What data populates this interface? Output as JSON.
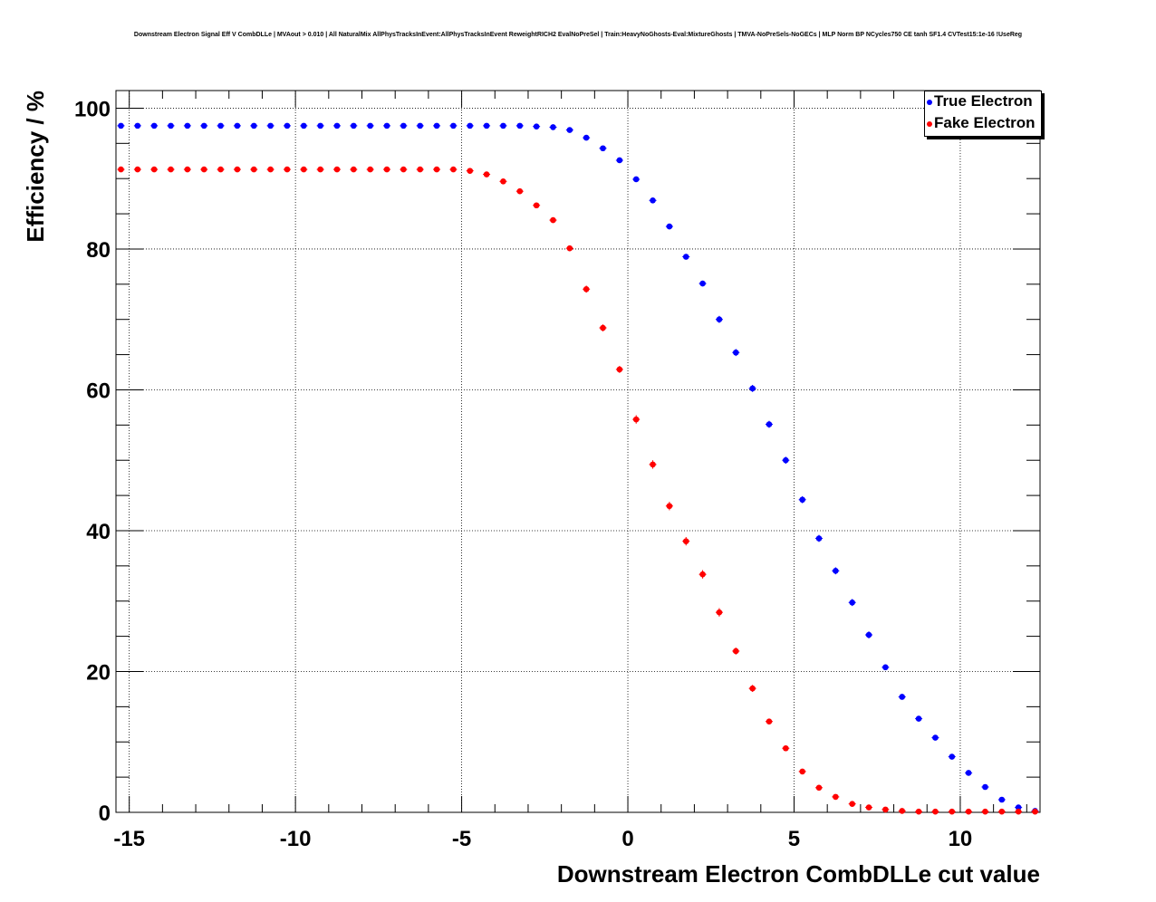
{
  "chart_data": {
    "type": "scatter",
    "title": "Downstream Electron Signal Eff V CombDLLe | MVAout > 0.010 | All NaturalMix AllPhysTracksInEvent:AllPhysTracksInEvent ReweightRICH2 EvalNoPreSel | Train:HeavyNoGhosts-Eval:MixtureGhosts | TMVA-NoPreSels-NoGECs | MLP Norm BP NCycles750 CE tanh SF1.4 CVTest15:1e-16 !UseReg",
    "xlabel": "Downstream Electron CombDLLe cut value",
    "ylabel": "Efficiency / %",
    "xlim": [
      -15.4,
      12.4
    ],
    "ylim": [
      0,
      102.5
    ],
    "xticks": [
      -15,
      -10,
      -5,
      0,
      5,
      10
    ],
    "xtick_labels": [
      "-15",
      "-10",
      "-5",
      "0",
      "5",
      "10"
    ],
    "yticks": [
      0,
      20,
      40,
      60,
      80,
      100
    ],
    "ytick_labels": [
      "0",
      "20",
      "40",
      "60",
      "80",
      "100"
    ],
    "grid": true,
    "legend_position": "top-right",
    "series": [
      {
        "name": "True Electron",
        "color": "#0000ff",
        "x": [
          -15.25,
          -14.75,
          -14.25,
          -13.75,
          -13.25,
          -12.75,
          -12.25,
          -11.75,
          -11.25,
          -10.75,
          -10.25,
          -9.75,
          -9.25,
          -8.75,
          -8.25,
          -7.75,
          -7.25,
          -6.75,
          -6.25,
          -5.75,
          -5.25,
          -4.75,
          -4.25,
          -3.75,
          -3.25,
          -2.75,
          -2.25,
          -1.75,
          -1.25,
          -0.75,
          -0.25,
          0.25,
          0.75,
          1.25,
          1.75,
          2.25,
          2.75,
          3.25,
          3.75,
          4.25,
          4.75,
          5.25,
          5.75,
          6.25,
          6.75,
          7.25,
          7.75,
          8.25,
          8.75,
          9.25,
          9.75,
          10.25,
          10.75,
          11.25,
          11.75,
          12.25
        ],
        "y": [
          97.5,
          97.5,
          97.5,
          97.5,
          97.5,
          97.5,
          97.5,
          97.5,
          97.5,
          97.5,
          97.5,
          97.5,
          97.5,
          97.5,
          97.5,
          97.5,
          97.5,
          97.5,
          97.5,
          97.5,
          97.5,
          97.5,
          97.5,
          97.5,
          97.5,
          97.4,
          97.3,
          96.9,
          95.8,
          94.3,
          92.6,
          89.9,
          86.9,
          83.2,
          78.9,
          75.1,
          70.0,
          65.3,
          60.2,
          55.1,
          50.0,
          44.4,
          38.9,
          34.3,
          29.8,
          25.2,
          20.6,
          16.4,
          13.3,
          10.6,
          7.9,
          5.6,
          3.6,
          1.8,
          0.7,
          0.2
        ],
        "error": [
          0.2,
          0.2,
          0.2,
          0.2,
          0.2,
          0.2,
          0.2,
          0.2,
          0.2,
          0.2,
          0.2,
          0.2,
          0.2,
          0.2,
          0.2,
          0.2,
          0.2,
          0.2,
          0.2,
          0.2,
          0.2,
          0.2,
          0.2,
          0.2,
          0.2,
          0.2,
          0.2,
          0.2,
          0.2,
          0.3,
          0.3,
          0.3,
          0.3,
          0.4,
          0.4,
          0.4,
          0.5,
          0.5,
          0.5,
          0.5,
          0.5,
          0.5,
          0.5,
          0.5,
          0.5,
          0.5,
          0.4,
          0.4,
          0.4,
          0.3,
          0.3,
          0.3,
          0.2,
          0.2,
          0.1,
          0.1
        ]
      },
      {
        "name": "Fake Electron",
        "color": "#ff0000",
        "x": [
          -15.25,
          -14.75,
          -14.25,
          -13.75,
          -13.25,
          -12.75,
          -12.25,
          -11.75,
          -11.25,
          -10.75,
          -10.25,
          -9.75,
          -9.25,
          -8.75,
          -8.25,
          -7.75,
          -7.25,
          -6.75,
          -6.25,
          -5.75,
          -5.25,
          -4.75,
          -4.25,
          -3.75,
          -3.25,
          -2.75,
          -2.25,
          -1.75,
          -1.25,
          -0.75,
          -0.25,
          0.25,
          0.75,
          1.25,
          1.75,
          2.25,
          2.75,
          3.25,
          3.75,
          4.25,
          4.75,
          5.25,
          5.75,
          6.25,
          6.75,
          7.25,
          7.75,
          8.25,
          8.75,
          9.25,
          9.75,
          10.25,
          10.75,
          11.25,
          11.75,
          12.25
        ],
        "y": [
          91.3,
          91.3,
          91.3,
          91.3,
          91.3,
          91.3,
          91.3,
          91.3,
          91.3,
          91.3,
          91.3,
          91.3,
          91.3,
          91.3,
          91.3,
          91.3,
          91.3,
          91.3,
          91.3,
          91.3,
          91.3,
          91.1,
          90.6,
          89.6,
          88.2,
          86.2,
          84.1,
          80.1,
          74.3,
          68.8,
          62.9,
          55.8,
          49.4,
          43.5,
          38.5,
          33.8,
          28.4,
          22.9,
          17.6,
          12.9,
          9.1,
          5.8,
          3.5,
          2.2,
          1.2,
          0.7,
          0.4,
          0.2,
          0.1,
          0.1,
          0.1,
          0.1,
          0.1,
          0.1,
          0.1,
          0.1
        ],
        "error": [
          0.3,
          0.3,
          0.3,
          0.3,
          0.3,
          0.3,
          0.3,
          0.3,
          0.3,
          0.3,
          0.3,
          0.3,
          0.3,
          0.3,
          0.3,
          0.3,
          0.3,
          0.3,
          0.3,
          0.3,
          0.3,
          0.3,
          0.3,
          0.3,
          0.3,
          0.4,
          0.4,
          0.4,
          0.5,
          0.5,
          0.5,
          0.6,
          0.6,
          0.6,
          0.6,
          0.6,
          0.6,
          0.5,
          0.5,
          0.4,
          0.4,
          0.3,
          0.2,
          0.2,
          0.1,
          0.1,
          0.1,
          0.1,
          0.05,
          0.05,
          0.05,
          0.05,
          0.05,
          0.05,
          0.05,
          0.05
        ]
      }
    ]
  }
}
